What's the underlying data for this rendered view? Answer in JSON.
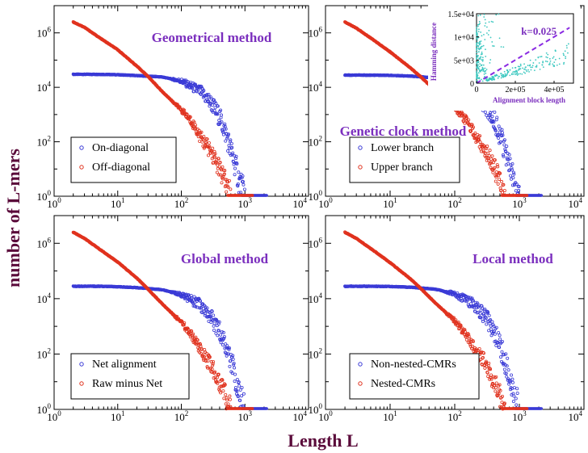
{
  "figure": {
    "ylabel": "number of L-mers",
    "xlabel": "Length L"
  },
  "colors": {
    "series_a": "#3a3ad6",
    "series_b": "#e0321e",
    "title": "#7b2fbe",
    "axis_title": "#5a0a3a",
    "inset_points": "#3cc8c0",
    "inset_fit": "#8a2be2"
  },
  "chart_data": [
    {
      "type": "scatter",
      "title": "Geometrical method",
      "xscale": "log",
      "yscale": "log",
      "xlim": [
        1,
        10000
      ],
      "ylim": [
        1,
        10000000
      ],
      "legend_position": "bottom-left",
      "series": [
        {
          "name": "On-diagonal",
          "points": [
            [
              2,
              30000
            ],
            [
              5,
              30000
            ],
            [
              10,
              29000
            ],
            [
              20,
              27000
            ],
            [
              50,
              24000
            ],
            [
              100,
              17000
            ],
            [
              200,
              7000
            ],
            [
              300,
              2500
            ],
            [
              400,
              800
            ],
            [
              500,
              200
            ],
            [
              600,
              50
            ],
            [
              700,
              15
            ],
            [
              800,
              4
            ],
            [
              900,
              2
            ],
            [
              1000,
              1
            ]
          ]
        },
        {
          "name": "Off-diagonal",
          "points": [
            [
              2,
              2500000
            ],
            [
              3,
              1600000
            ],
            [
              5,
              700000
            ],
            [
              10,
              240000
            ],
            [
              20,
              60000
            ],
            [
              30,
              25000
            ],
            [
              50,
              7000
            ],
            [
              100,
              1500
            ],
            [
              150,
              500
            ],
            [
              200,
              150
            ],
            [
              300,
              40
            ],
            [
              400,
              10
            ],
            [
              500,
              3
            ],
            [
              600,
              1
            ]
          ]
        }
      ],
      "xticks": [
        "10^0",
        "10^1",
        "10^2",
        "10^3",
        "10^4"
      ],
      "yticks": [
        "10^0",
        "10^2",
        "10^4",
        "10^6"
      ]
    },
    {
      "type": "scatter",
      "title": "Genetic clock method",
      "xscale": "log",
      "yscale": "log",
      "xlim": [
        1,
        10000
      ],
      "ylim": [
        1,
        10000000
      ],
      "legend_position": "bottom-left",
      "series": [
        {
          "name": "Lower branch",
          "points": [
            [
              2,
              28000
            ],
            [
              5,
              28000
            ],
            [
              10,
              27500
            ],
            [
              20,
              26000
            ],
            [
              50,
              22000
            ],
            [
              100,
              15000
            ],
            [
              200,
              6000
            ],
            [
              300,
              2000
            ],
            [
              400,
              700
            ],
            [
              500,
              180
            ],
            [
              600,
              50
            ],
            [
              700,
              15
            ],
            [
              800,
              4
            ],
            [
              900,
              2
            ],
            [
              1000,
              1
            ]
          ]
        },
        {
          "name": "Upper branch",
          "points": [
            [
              2,
              2500000
            ],
            [
              3,
              1500000
            ],
            [
              5,
              650000
            ],
            [
              10,
              200000
            ],
            [
              20,
              55000
            ],
            [
              30,
              24000
            ],
            [
              50,
              7500
            ],
            [
              100,
              1800
            ],
            [
              150,
              600
            ],
            [
              200,
              200
            ],
            [
              300,
              50
            ],
            [
              400,
              12
            ],
            [
              500,
              4
            ],
            [
              600,
              1
            ]
          ]
        }
      ],
      "xticks": [
        "10^0",
        "10^1",
        "10^2",
        "10^3",
        "10^4"
      ],
      "yticks": [
        "10^0",
        "10^2",
        "10^4",
        "10^6"
      ],
      "inset": {
        "type": "scatter",
        "xlabel": "Alignment block length",
        "ylabel": "Hamming distance",
        "annotation": "k=0.025",
        "slope": 0.025,
        "xlim": [
          0,
          500000
        ],
        "ylim": [
          0,
          15000
        ],
        "xticks": [
          "0",
          "2e+05",
          "4e+05"
        ],
        "yticks": [
          "0",
          "5e+03",
          "1e+04",
          "1.5e+04"
        ]
      }
    },
    {
      "type": "scatter",
      "title": "Global method",
      "xscale": "log",
      "yscale": "log",
      "xlim": [
        1,
        10000
      ],
      "ylim": [
        1,
        10000000
      ],
      "legend_position": "bottom-left",
      "series": [
        {
          "name": "Net alignment",
          "points": [
            [
              2,
              28000
            ],
            [
              5,
              28000
            ],
            [
              10,
              27000
            ],
            [
              20,
              25000
            ],
            [
              50,
              21000
            ],
            [
              100,
              14000
            ],
            [
              200,
              6000
            ],
            [
              300,
              2000
            ],
            [
              400,
              700
            ],
            [
              500,
              200
            ],
            [
              600,
              60
            ],
            [
              700,
              15
            ],
            [
              800,
              4
            ],
            [
              900,
              2
            ],
            [
              1000,
              1
            ]
          ]
        },
        {
          "name": "Raw minus Net",
          "points": [
            [
              2,
              2500000
            ],
            [
              3,
              1500000
            ],
            [
              5,
              650000
            ],
            [
              10,
              210000
            ],
            [
              20,
              55000
            ],
            [
              30,
              22000
            ],
            [
              50,
              6500
            ],
            [
              100,
              1400
            ],
            [
              150,
              450
            ],
            [
              200,
              140
            ],
            [
              300,
              35
            ],
            [
              400,
              9
            ],
            [
              500,
              3
            ],
            [
              600,
              1
            ]
          ]
        }
      ],
      "xticks": [
        "10^0",
        "10^1",
        "10^2",
        "10^3",
        "10^4"
      ],
      "yticks": [
        "10^0",
        "10^2",
        "10^4",
        "10^6"
      ]
    },
    {
      "type": "scatter",
      "title": "Local method",
      "xscale": "log",
      "yscale": "log",
      "xlim": [
        1,
        10000
      ],
      "ylim": [
        1,
        10000000
      ],
      "legend_position": "bottom-left",
      "series": [
        {
          "name": "Non-nested-CMRs",
          "points": [
            [
              2,
              28000
            ],
            [
              5,
              28000
            ],
            [
              10,
              27500
            ],
            [
              20,
              26000
            ],
            [
              50,
              22000
            ],
            [
              100,
              15000
            ],
            [
              200,
              6000
            ],
            [
              300,
              2200
            ],
            [
              400,
              750
            ],
            [
              500,
              200
            ],
            [
              600,
              55
            ],
            [
              700,
              15
            ],
            [
              800,
              4
            ],
            [
              900,
              2
            ],
            [
              1000,
              1
            ]
          ]
        },
        {
          "name": "Nested-CMRs",
          "points": [
            [
              2,
              2500000
            ],
            [
              3,
              1500000
            ],
            [
              5,
              650000
            ],
            [
              10,
              200000
            ],
            [
              20,
              55000
            ],
            [
              30,
              23000
            ],
            [
              50,
              7000
            ],
            [
              100,
              1600
            ],
            [
              150,
              500
            ],
            [
              200,
              160
            ],
            [
              300,
              45
            ],
            [
              400,
              11
            ],
            [
              500,
              3
            ],
            [
              600,
              1
            ]
          ]
        }
      ],
      "xticks": [
        "10^0",
        "10^1",
        "10^2",
        "10^3",
        "10^4"
      ],
      "yticks": [
        "10^0",
        "10^2",
        "10^4",
        "10^6"
      ]
    }
  ]
}
